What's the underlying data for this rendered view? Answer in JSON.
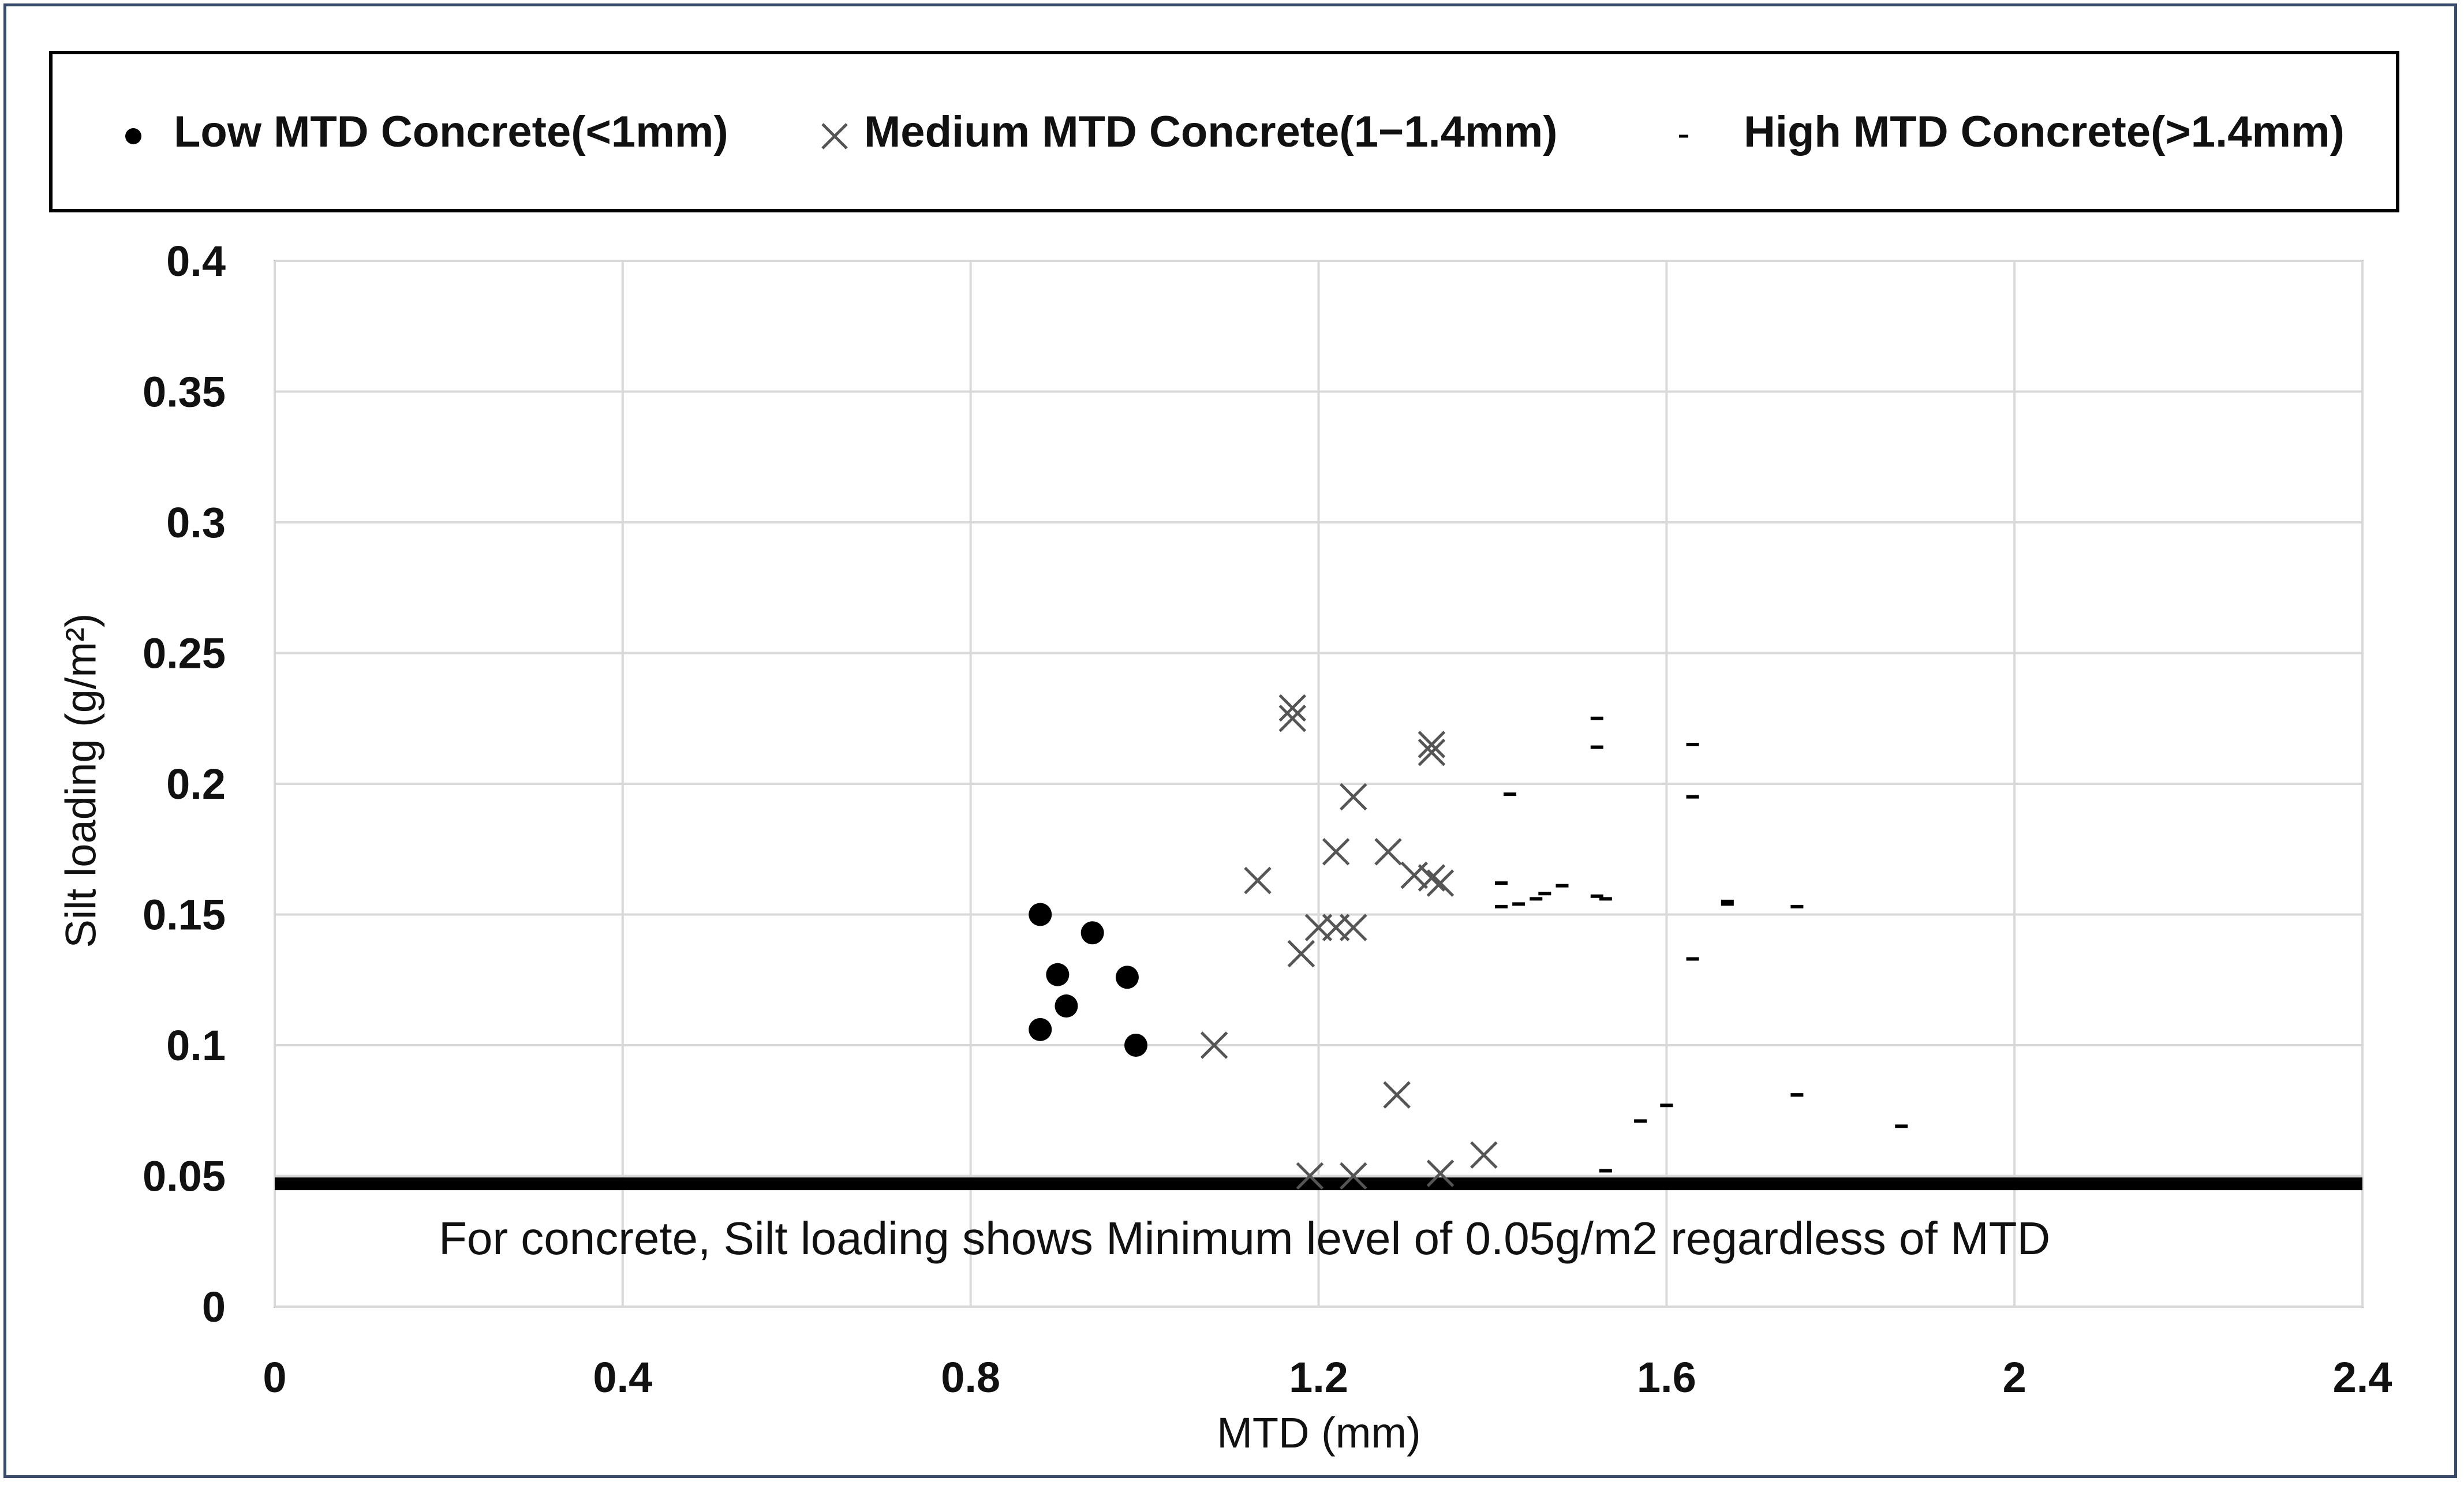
{
  "chart_data": {
    "type": "scatter",
    "title": "",
    "xlabel": "MTD (mm)",
    "ylabel": "Silt loading (g/m²)",
    "xlim": [
      0,
      2.4
    ],
    "ylim": [
      0,
      0.4
    ],
    "x_ticks": [
      "0",
      "0.4",
      "0.8",
      "1.2",
      "1.6",
      "2",
      "2.4"
    ],
    "y_ticks": [
      "0",
      "0.05",
      "0.1",
      "0.15",
      "0.2",
      "0.25",
      "0.3",
      "0.35",
      "0.4"
    ],
    "grid": true,
    "legend_position": "top",
    "series": [
      {
        "name": "Low MTD Concrete(<1mm)",
        "marker": "circle",
        "color": "#000000",
        "points": [
          [
            0.88,
            0.15
          ],
          [
            0.94,
            0.143
          ],
          [
            0.9,
            0.127
          ],
          [
            0.98,
            0.126
          ],
          [
            0.91,
            0.115
          ],
          [
            0.88,
            0.106
          ],
          [
            0.99,
            0.1
          ]
        ]
      },
      {
        "name": "Medium MTD Concrete(1−1.4mm)",
        "marker": "x",
        "color": "#555555",
        "points": [
          [
            1.17,
            0.229
          ],
          [
            1.17,
            0.225
          ],
          [
            1.33,
            0.215
          ],
          [
            1.33,
            0.212
          ],
          [
            1.24,
            0.195
          ],
          [
            1.13,
            0.163
          ],
          [
            1.22,
            0.174
          ],
          [
            1.28,
            0.174
          ],
          [
            1.31,
            0.165
          ],
          [
            1.33,
            0.164
          ],
          [
            1.34,
            0.162
          ],
          [
            1.2,
            0.145
          ],
          [
            1.22,
            0.145
          ],
          [
            1.24,
            0.145
          ],
          [
            1.18,
            0.135
          ],
          [
            1.08,
            0.1
          ],
          [
            1.29,
            0.081
          ],
          [
            1.39,
            0.058
          ],
          [
            1.19,
            0.05
          ],
          [
            1.24,
            0.05
          ],
          [
            1.34,
            0.051
          ]
        ]
      },
      {
        "name": "High MTD Concrete(>1.4mm)",
        "marker": "dash",
        "color": "#000000",
        "points": [
          [
            1.52,
            0.225
          ],
          [
            1.52,
            0.214
          ],
          [
            1.63,
            0.215
          ],
          [
            1.63,
            0.195
          ],
          [
            1.42,
            0.196
          ],
          [
            1.41,
            0.162
          ],
          [
            1.48,
            0.161
          ],
          [
            1.46,
            0.158
          ],
          [
            1.45,
            0.156
          ],
          [
            1.43,
            0.154
          ],
          [
            1.41,
            0.153
          ],
          [
            1.52,
            0.157
          ],
          [
            1.53,
            0.156
          ],
          [
            1.67,
            0.155
          ],
          [
            1.67,
            0.154
          ],
          [
            1.75,
            0.153
          ],
          [
            1.63,
            0.133
          ],
          [
            1.75,
            0.081
          ],
          [
            1.6,
            0.077
          ],
          [
            1.57,
            0.071
          ],
          [
            1.87,
            0.069
          ],
          [
            1.53,
            0.052
          ]
        ]
      }
    ],
    "reference_line": {
      "y": 0.047,
      "color": "#000000"
    },
    "annotation": "For concrete, Silt loading shows Minimum level of 0.05g/m2 regardless of MTD"
  },
  "legend": {
    "items": [
      {
        "label": "Low MTD Concrete(<1mm)",
        "marker": "circle"
      },
      {
        "label": "Medium MTD Concrete(1−1.4mm)",
        "marker": "x"
      },
      {
        "label": "High MTD Concrete(>1.4mm)",
        "marker": "dash"
      }
    ]
  },
  "colors": {
    "grid": "#d9d9d9",
    "axis": "#bfbfbf",
    "frame": "#3a4a6a"
  }
}
